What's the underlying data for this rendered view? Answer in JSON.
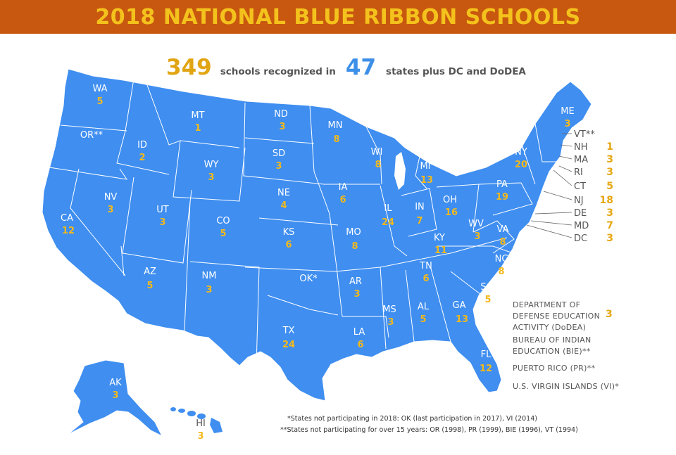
{
  "title": "2018 NATIONAL BLUE RIBBON SCHOOLS",
  "headline": {
    "total_schools": "349",
    "text_1": "schools recognized in",
    "total_states": "47",
    "text_2": "states plus DC and DoDEA"
  },
  "colors": {
    "banner": "#c8580f",
    "banner_text": "#f4c21c",
    "map_fill": "#3f8ef0",
    "number_gold": "#f2b91c",
    "blue": "#3d8fe8"
  },
  "states": [
    {
      "abbr": "WA",
      "value": "5"
    },
    {
      "abbr": "OR**",
      "value": ""
    },
    {
      "abbr": "CA",
      "value": "12"
    },
    {
      "abbr": "ID",
      "value": "2"
    },
    {
      "abbr": "NV",
      "value": "3"
    },
    {
      "abbr": "MT",
      "value": "1"
    },
    {
      "abbr": "WY",
      "value": "3"
    },
    {
      "abbr": "UT",
      "value": "3"
    },
    {
      "abbr": "AZ",
      "value": "5"
    },
    {
      "abbr": "CO",
      "value": "5"
    },
    {
      "abbr": "NM",
      "value": "3"
    },
    {
      "abbr": "ND",
      "value": "3"
    },
    {
      "abbr": "SD",
      "value": "3"
    },
    {
      "abbr": "NE",
      "value": "4"
    },
    {
      "abbr": "KS",
      "value": "6"
    },
    {
      "abbr": "OK*",
      "value": ""
    },
    {
      "abbr": "TX",
      "value": "24"
    },
    {
      "abbr": "MN",
      "value": "8"
    },
    {
      "abbr": "IA",
      "value": "6"
    },
    {
      "abbr": "MO",
      "value": "8"
    },
    {
      "abbr": "AR",
      "value": "3"
    },
    {
      "abbr": "LA",
      "value": "6"
    },
    {
      "abbr": "WI",
      "value": "8"
    },
    {
      "abbr": "IL",
      "value": "24"
    },
    {
      "abbr": "MI",
      "value": "13"
    },
    {
      "abbr": "IN",
      "value": "7"
    },
    {
      "abbr": "OH",
      "value": "16"
    },
    {
      "abbr": "KY",
      "value": "11"
    },
    {
      "abbr": "TN",
      "value": "6"
    },
    {
      "abbr": "MS",
      "value": "3"
    },
    {
      "abbr": "AL",
      "value": "5"
    },
    {
      "abbr": "GA",
      "value": "13"
    },
    {
      "abbr": "FL",
      "value": "12"
    },
    {
      "abbr": "SC",
      "value": "5"
    },
    {
      "abbr": "NC",
      "value": "8"
    },
    {
      "abbr": "VA",
      "value": "8"
    },
    {
      "abbr": "WV",
      "value": "3"
    },
    {
      "abbr": "PA",
      "value": "19"
    },
    {
      "abbr": "NY",
      "value": "20"
    },
    {
      "abbr": "ME",
      "value": "3"
    },
    {
      "abbr": "AK",
      "value": "3"
    },
    {
      "abbr": "HI",
      "value": "3"
    }
  ],
  "northeast": [
    {
      "abbr": "VT**",
      "value": ""
    },
    {
      "abbr": "NH",
      "value": "1"
    },
    {
      "abbr": "MA",
      "value": "3"
    },
    {
      "abbr": "RI",
      "value": "3"
    },
    {
      "abbr": "CT",
      "value": "5"
    },
    {
      "abbr": "NJ",
      "value": "18"
    },
    {
      "abbr": "DE",
      "value": "3"
    },
    {
      "abbr": "MD",
      "value": "7"
    },
    {
      "abbr": "DC",
      "value": "3"
    }
  ],
  "other": [
    {
      "label_1": "DEPARTMENT OF",
      "label_2": "DEFENSE EDUCATION",
      "label_3": "ACTIVITY (DoDEA)",
      "value": "3"
    },
    {
      "label_1": "BUREAU OF INDIAN",
      "label_2": "EDUCATION (BIE)**"
    },
    {
      "label_1": "PUERTO RICO (PR)**"
    },
    {
      "label_1": "U.S. VIRGIN ISLANDS (VI)*"
    }
  ],
  "footnotes": [
    "*States not participating in 2018: OK (last participation in 2017), VI (2014)",
    "**States not participating for over 15 years: OR (1998), PR (1999), BIE (1996), VT (1994)"
  ]
}
